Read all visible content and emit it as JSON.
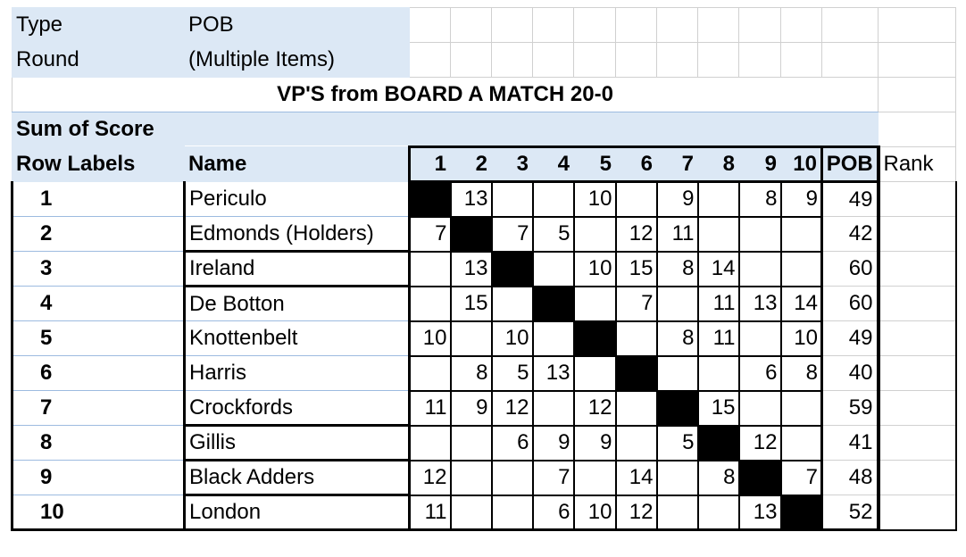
{
  "filters": [
    {
      "label": "Type",
      "value": "POB"
    },
    {
      "label": "Round",
      "value": "(Multiple Items)"
    }
  ],
  "title": "VP'S from BOARD A MATCH 20-0",
  "measure": "Sum of Score",
  "headers": {
    "row_labels": "Row Labels",
    "name": "Name",
    "columns": [
      "1",
      "2",
      "3",
      "4",
      "5",
      "6",
      "7",
      "8",
      "9",
      "10"
    ],
    "total": "POB",
    "rank": "Rank"
  },
  "rows": [
    {
      "label": "1",
      "name": "Periculo",
      "scores": [
        "",
        "13",
        "",
        "",
        "10",
        "",
        "9",
        "",
        "8",
        "9"
      ],
      "pob": "49"
    },
    {
      "label": "2",
      "name": "Edmonds (Holders)",
      "scores": [
        "7",
        "",
        "7",
        "5",
        "",
        "12",
        "11",
        "",
        "",
        ""
      ],
      "pob": "42"
    },
    {
      "label": "3",
      "name": "Ireland",
      "scores": [
        "",
        "13",
        "",
        "",
        "10",
        "15",
        "8",
        "14",
        "",
        ""
      ],
      "pob": "60"
    },
    {
      "label": "4",
      "name": "De Botton",
      "scores": [
        "",
        "15",
        "",
        "",
        "",
        "7",
        "",
        "11",
        "13",
        "14"
      ],
      "pob": "60"
    },
    {
      "label": "5",
      "name": "Knottenbelt",
      "scores": [
        "10",
        "",
        "10",
        "",
        "",
        "",
        "8",
        "11",
        "",
        "10"
      ],
      "pob": "49"
    },
    {
      "label": "6",
      "name": "Harris",
      "scores": [
        "",
        "8",
        "5",
        "13",
        "",
        "",
        "",
        "",
        "6",
        "8"
      ],
      "pob": "40"
    },
    {
      "label": "7",
      "name": "Crockfords",
      "scores": [
        "11",
        "9",
        "12",
        "",
        "12",
        "",
        "",
        "15",
        "",
        ""
      ],
      "pob": "59"
    },
    {
      "label": "8",
      "name": "Gillis",
      "scores": [
        "",
        "",
        "6",
        "9",
        "9",
        "",
        "5",
        "",
        "12",
        ""
      ],
      "pob": "41"
    },
    {
      "label": "9",
      "name": "Black Adders",
      "scores": [
        "12",
        "",
        "",
        "7",
        "",
        "14",
        "",
        "8",
        "",
        "7"
      ],
      "pob": "48"
    },
    {
      "label": "10",
      "name": "London",
      "scores": [
        "11",
        "",
        "",
        "6",
        "10",
        "12",
        "",
        "",
        "13",
        ""
      ],
      "pob": "52"
    }
  ]
}
